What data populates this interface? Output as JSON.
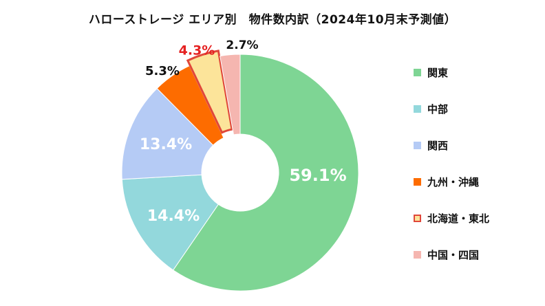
{
  "chart_data": {
    "type": "pie",
    "donut": true,
    "title": "ハローストレージ エリア別　物件数内訳（2024年10月末予測値）",
    "legend_position": "right",
    "slices": [
      {
        "name": "関東",
        "value": 59.1,
        "label": "59.1%",
        "color": "#7ed594",
        "label_color": "#ffffff"
      },
      {
        "name": "中部",
        "value": 14.4,
        "label": "14.4%",
        "color": "#93d8dc",
        "label_color": "#ffffff"
      },
      {
        "name": "関西",
        "value": 13.4,
        "label": "13.4%",
        "color": "#b5cbf5",
        "label_color": "#ffffff"
      },
      {
        "name": "九州・沖縄",
        "value": 5.3,
        "label": "5.3%",
        "color": "#fd6c00",
        "label_color": "#111111"
      },
      {
        "name": "北海道・東北",
        "value": 4.3,
        "label": "4.3%",
        "color": "#fce49a",
        "label_color": "#e52222",
        "border_color": "#e0473a",
        "highlighted": true
      },
      {
        "name": "中国・四国",
        "value": 2.7,
        "label": "2.7%",
        "color": "#f5b6b0",
        "label_color": "#111111"
      }
    ]
  }
}
